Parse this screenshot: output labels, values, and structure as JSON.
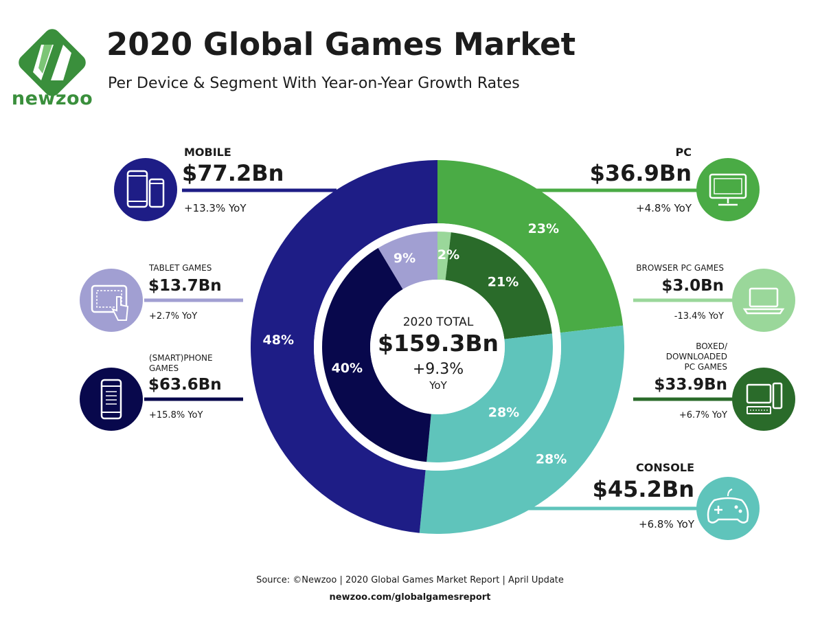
{
  "header": {
    "logo_text": "newzoo",
    "title": "2020 Global Games Market",
    "subtitle": "Per Device & Segment With Year-on-Year Growth Rates"
  },
  "chart_data": {
    "type": "pie",
    "center": {
      "label": "2020 TOTAL",
      "value": "$159.3Bn",
      "growth": "+9.3%",
      "growth_unit": "YoY"
    },
    "outer_ring": [
      {
        "name": "MOBILE",
        "value_bn": 77.2,
        "value_label": "$77.2Bn",
        "growth": "+13.3% YoY",
        "share_label": "48%",
        "color": "#1e1d86",
        "icon": "mobile-devices-icon"
      },
      {
        "name": "PC",
        "value_bn": 36.9,
        "value_label": "$36.9Bn",
        "growth": "+4.8% YoY",
        "share_label": "23%",
        "color": "#4aab45",
        "icon": "monitor-icon"
      },
      {
        "name": "CONSOLE",
        "value_bn": 45.2,
        "value_label": "$45.2Bn",
        "growth": "+6.8% YoY",
        "share_label": "28%",
        "color": "#5fc4bb",
        "icon": "gamepad-icon"
      }
    ],
    "inner_ring": [
      {
        "name": "TABLET GAMES",
        "value_bn": 13.7,
        "value_label": "$13.7Bn",
        "growth": "+2.7% YoY",
        "share_label": "9%",
        "color": "#a19fd2",
        "icon": "tablet-icon"
      },
      {
        "name": "BROWSER PC GAMES",
        "value_bn": 3.0,
        "value_label": "$3.0Bn",
        "growth": "-13.4% YoY",
        "share_label": "2%",
        "color": "#9ad79a",
        "icon": "laptop-icon"
      },
      {
        "name": "BOXED/ DOWNLOADED PC GAMES",
        "name_lines": [
          "BOXED/",
          "DOWNLOADED",
          "PC GAMES"
        ],
        "value_bn": 33.9,
        "value_label": "$33.9Bn",
        "growth": "+6.7% YoY",
        "share_label": "21%",
        "color": "#2a6b2a",
        "icon": "desktop-pc-icon"
      },
      {
        "name": "CONSOLE",
        "value_bn": 45.2,
        "share_label": "28%",
        "color": "#5fc4bb"
      },
      {
        "name": "(SMART)PHONE GAMES",
        "name_lines": [
          "(SMART)PHONE",
          "GAMES"
        ],
        "value_bn": 63.6,
        "value_label": "$63.6Bn",
        "growth": "+15.8% YoY",
        "share_label": "40%",
        "color": "#08084c",
        "icon": "smartphone-icon"
      }
    ]
  },
  "footer": {
    "source": "Source: ©Newzoo | 2020 Global Games Market Report | April Update",
    "url": "newzoo.com/globalgamesreport"
  }
}
